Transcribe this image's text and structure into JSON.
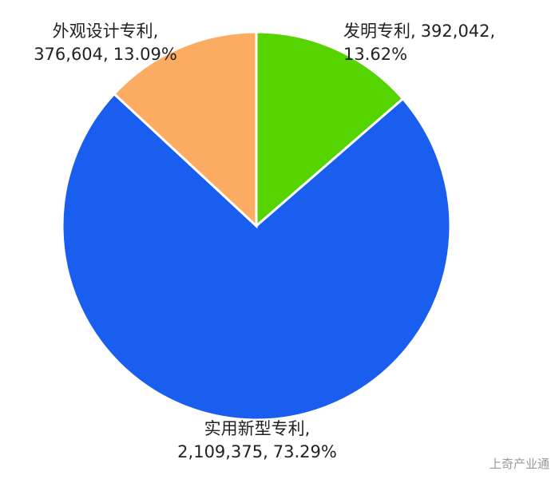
{
  "chart_data": {
    "type": "pie",
    "categories": [
      "发明专利",
      "实用新型专利",
      "外观设计专利"
    ],
    "values": [
      392042,
      2109375,
      376604
    ],
    "value_labels": [
      "392,042",
      "2,109,375",
      "376,604"
    ],
    "percentages": [
      13.62,
      73.29,
      13.09
    ],
    "percentage_labels": [
      "13.62%",
      "73.29%",
      "13.09%"
    ],
    "separator": ",",
    "colors": [
      "#55d400",
      "#1a5ef0",
      "#fcac62"
    ],
    "start_angle": 0,
    "direction": "clockwise"
  },
  "watermark": "上奇产业通"
}
